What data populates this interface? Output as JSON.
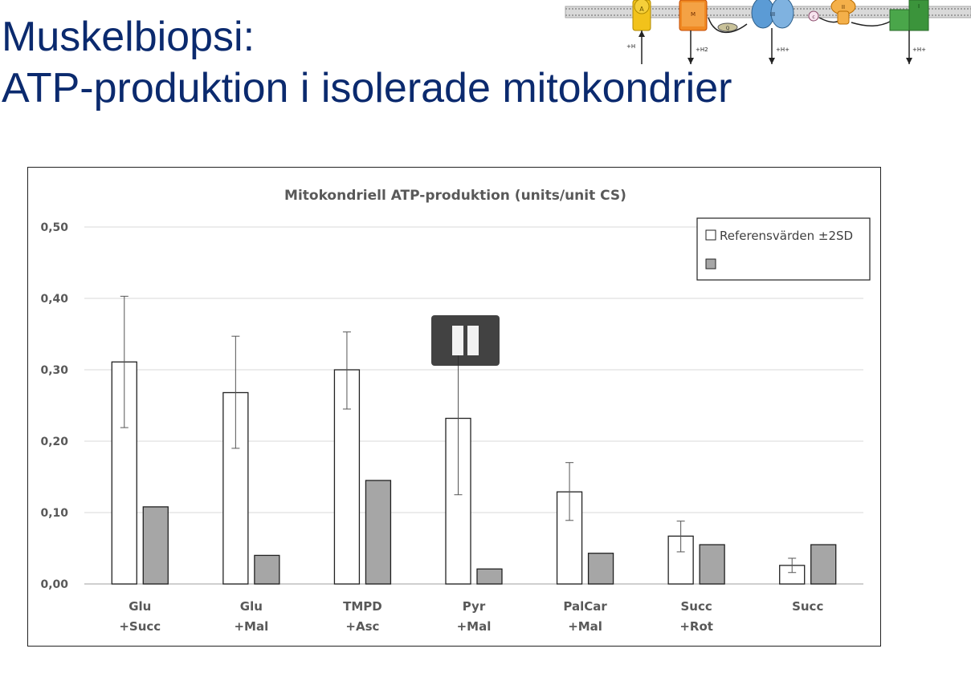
{
  "slide": {
    "title_line1": "Muskelbiopsi:",
    "title_line2": "ATP-produktion i isolerade mitokondrier"
  },
  "diagram": {
    "complex_labels": [
      "A",
      "M",
      "III",
      "II",
      "I"
    ],
    "small_labels": [
      "Q",
      "c"
    ],
    "proton_labels": [
      "+H",
      "+H2",
      "+H+",
      "+H+"
    ]
  },
  "player": {
    "control": "pause-icon"
  },
  "chart_data": {
    "type": "bar",
    "title": "Mitokondriell ATP-produktion (units/unit CS)",
    "categories": [
      [
        "Glu",
        "+Succ"
      ],
      [
        "Glu",
        "+Mal"
      ],
      [
        "TMPD",
        "+Asc"
      ],
      [
        "Pyr",
        "+Mal"
      ],
      [
        "PalCar",
        "+Mal"
      ],
      [
        "Succ",
        "+Rot"
      ],
      [
        "Succ",
        ""
      ]
    ],
    "ylim": [
      0,
      0.5
    ],
    "yticks": [
      0,
      0.1,
      0.2,
      0.3,
      0.4,
      0.5
    ],
    "ytick_labels": [
      "0,00",
      "0,10",
      "0,20",
      "0,30",
      "0,40",
      "0,50"
    ],
    "grid": true,
    "legend_position": "top-right",
    "series": [
      {
        "name": "Referensvärden ±2SD",
        "color": "#ffffff",
        "values": [
          0.311,
          0.268,
          0.3,
          0.232,
          0.129,
          0.067,
          0.026
        ],
        "error_low": [
          0.219,
          0.19,
          0.245,
          0.125,
          0.089,
          0.045,
          0.016
        ],
        "error_high": [
          0.403,
          0.347,
          0.353,
          0.33,
          0.17,
          0.088,
          0.036
        ]
      },
      {
        "name": "",
        "color": "#a6a6a6",
        "values": [
          0.108,
          0.04,
          0.145,
          0.021,
          0.043,
          0.055,
          0.055
        ]
      }
    ]
  }
}
